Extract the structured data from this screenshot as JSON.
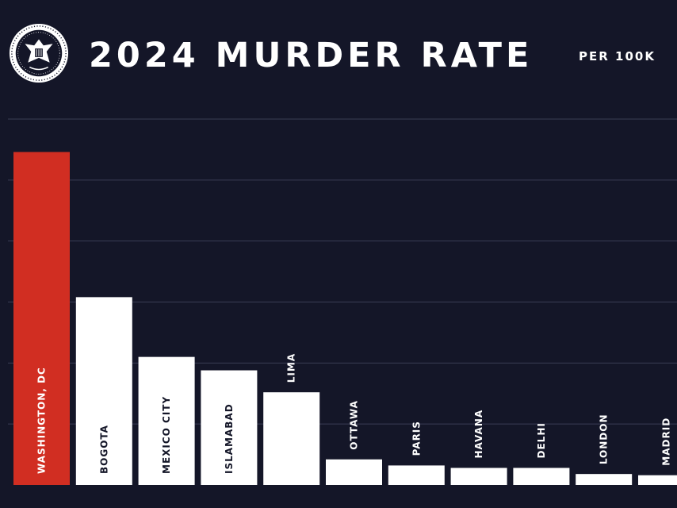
{
  "header": {
    "title": "2024 MURDER RATE",
    "unit": "PER 100K",
    "seal_icon": "presidential-seal-icon"
  },
  "colors": {
    "background": "#141628",
    "highlight": "#d12e22",
    "bar": "#ffffff",
    "grid": "#3a3d55",
    "label_on_white": "#141628",
    "label_on_dark": "#ffffff"
  },
  "chart_data": {
    "type": "bar",
    "title": "2024 MURDER RATE",
    "ylabel": "PER 100K",
    "categories": [
      "WASHINGTON, DC",
      "BOGOTA",
      "MEXICO CITY",
      "ISLAMABAD",
      "LIMA",
      "OTTAWA",
      "PARIS",
      "HAVANA",
      "DELHI",
      "LONDON",
      "MADRID"
    ],
    "values": [
      27.3,
      15.4,
      10.5,
      9.4,
      7.6,
      2.1,
      1.6,
      1.4,
      1.4,
      0.9,
      0.8
    ],
    "highlight_index": 0,
    "ylim": [
      0,
      30
    ],
    "y_ticks": [
      0,
      5,
      10,
      15,
      20,
      25,
      30
    ],
    "grid": true,
    "legend": "none"
  }
}
